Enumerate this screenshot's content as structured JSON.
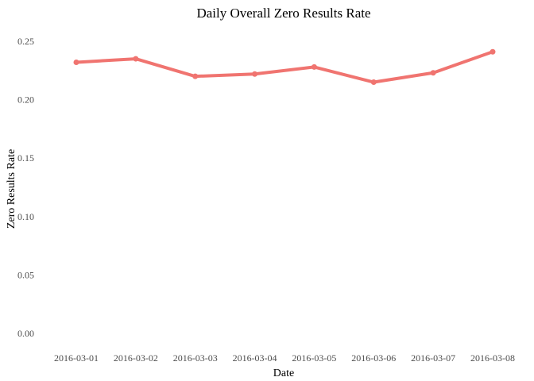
{
  "chart_data": {
    "type": "line",
    "title": "Daily Overall Zero Results Rate",
    "xlabel": "Date",
    "ylabel": "Zero Results Rate",
    "x": [
      "2016-03-01",
      "2016-03-02",
      "2016-03-03",
      "2016-03-04",
      "2016-03-05",
      "2016-03-06",
      "2016-03-07",
      "2016-03-08"
    ],
    "series": [
      {
        "values": [
          0.232,
          0.235,
          0.22,
          0.222,
          0.228,
          0.215,
          0.223,
          0.241
        ]
      }
    ],
    "yticks": [
      "0.00",
      "0.05",
      "0.10",
      "0.15",
      "0.20",
      "0.25"
    ],
    "ylim": [
      0,
      0.25
    ],
    "grid": false,
    "legend": "none",
    "colors": {
      "line": "#F07470",
      "text": "#000000",
      "tick_text": "#4d4d4d"
    }
  }
}
